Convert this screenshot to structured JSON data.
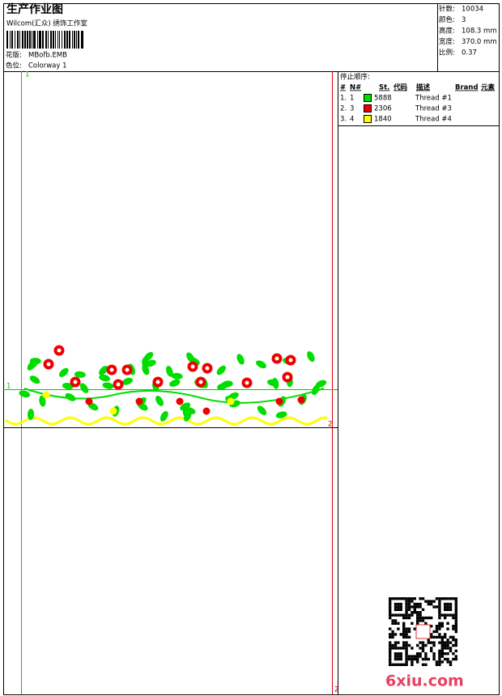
{
  "header": {
    "title": "生产作业图",
    "studio": "Wilcom(汇众) 绣饰工作室",
    "design_label": "花版:",
    "design": "MBofb.EMB",
    "colorway_label": "色位:",
    "colorway": "Colorway 1"
  },
  "info": [
    {
      "label": "针数:",
      "value": "10034"
    },
    {
      "label": "颜色:",
      "value": "3"
    },
    {
      "label": "高度:",
      "value": "108.3 mm"
    },
    {
      "label": "宽度:",
      "value": "370.0 mm"
    },
    {
      "label": "比例:",
      "value": "0.37"
    }
  ],
  "stop_sequence": {
    "title": "停止顺序:",
    "columns": [
      "#",
      "N#",
      "St.",
      "代码",
      "描述",
      "Brand",
      "元素"
    ],
    "rows": [
      {
        "index": "1.",
        "n": "1",
        "code": "5888",
        "description": "Thread #1",
        "color": "#00dd00"
      },
      {
        "index": "2.",
        "n": "3",
        "code": "2306",
        "description": "Thread #3",
        "color": "#ee0000"
      },
      {
        "index": "3.",
        "n": "4",
        "code": "1840",
        "description": "Thread #4",
        "color": "#ffff00"
      }
    ]
  },
  "markers": [
    "1",
    "1",
    "2",
    "2"
  ],
  "watermark": "6xiu.com"
}
